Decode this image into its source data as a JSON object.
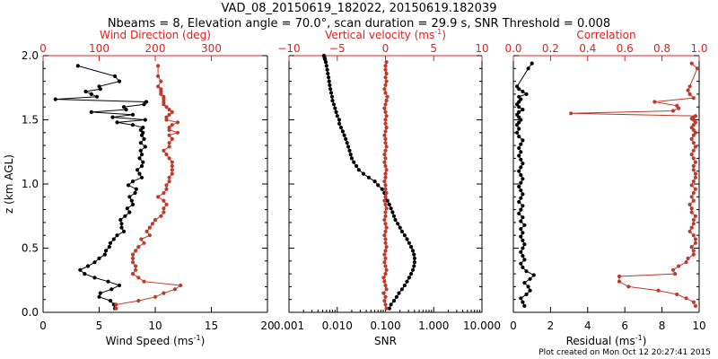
{
  "title_line1": "VAD_08_20150619_182022, 20150619.182039",
  "title_line2": "Nbeams = 8, Elevation angle = 70.0°, scan duration = 29.9 s, SNR Threshold = 0.008",
  "footer": "Plot created on Mon Oct 12 20:27:41 2015",
  "colors": {
    "black": "#000000",
    "red": "#c0392b",
    "red_axis": "#e02020"
  },
  "chart_data": [
    {
      "type": "line",
      "name": "wind-profile",
      "ylabel": "z (km AGL)",
      "ylim": [
        0,
        2.0
      ],
      "yticks": [
        0.0,
        0.5,
        1.0,
        1.5,
        2.0
      ],
      "ytick_labels": [
        "0.0",
        "0.5",
        "1.0",
        "1.5",
        "2.0"
      ],
      "bottom_axis": {
        "label": "Wind Speed (ms",
        "label_sup": "-1",
        "label_tail": ")",
        "lim": [
          0,
          20
        ],
        "ticks": [
          0,
          5,
          10,
          15,
          20
        ],
        "tick_labels": [
          "0",
          "5",
          "10",
          "15",
          "20"
        ]
      },
      "top_axis": {
        "label": "Wind Direction (deg)",
        "lim": [
          0,
          400
        ],
        "ticks": [
          0,
          100,
          200,
          300
        ],
        "tick_labels": [
          "0",
          "100",
          "200",
          "300"
        ]
      },
      "series": [
        {
          "name": "Wind Speed",
          "axis": "bottom",
          "color": "#000000",
          "x": [
            6.4,
            6.3,
            6.0,
            5.0,
            5.1,
            6.1,
            6.8,
            5.8,
            4.6,
            3.7,
            3.3,
            4.0,
            4.6,
            5.0,
            5.5,
            5.6,
            5.9,
            6.0,
            6.3,
            6.6,
            7.2,
            7.0,
            7.0,
            6.9,
            7.3,
            7.7,
            7.5,
            8.0,
            7.9,
            7.7,
            8.2,
            8.3,
            7.6,
            8.0,
            8.8,
            8.6,
            8.4,
            8.8,
            8.9,
            8.6,
            8.8,
            8.7,
            9.1,
            8.7,
            9.0,
            8.8,
            8.9,
            8.7,
            8.9,
            8.0,
            6.6,
            9.1,
            6.2,
            8.0,
            4.3,
            7.4,
            7.2,
            9.0,
            9.2,
            1.1,
            4.8,
            4.3,
            3.8,
            5.1,
            5.0,
            6.8,
            6.4,
            3.1
          ],
          "y": [
            0.03,
            0.06,
            0.09,
            0.12,
            0.15,
            0.18,
            0.21,
            0.24,
            0.27,
            0.3,
            0.33,
            0.36,
            0.39,
            0.42,
            0.45,
            0.48,
            0.51,
            0.54,
            0.57,
            0.6,
            0.63,
            0.66,
            0.69,
            0.72,
            0.75,
            0.78,
            0.81,
            0.84,
            0.87,
            0.9,
            0.93,
            0.96,
            0.99,
            1.02,
            1.05,
            1.08,
            1.11,
            1.14,
            1.17,
            1.2,
            1.23,
            1.26,
            1.29,
            1.32,
            1.35,
            1.38,
            1.4,
            1.42,
            1.44,
            1.46,
            1.48,
            1.5,
            1.52,
            1.54,
            1.56,
            1.58,
            1.6,
            1.62,
            1.64,
            1.66,
            1.68,
            1.7,
            1.72,
            1.74,
            1.76,
            1.8,
            1.84,
            1.92
          ]
        },
        {
          "name": "Wind Direction",
          "axis": "top",
          "color": "#c0392b",
          "x": [
            130,
            130,
            170,
            200,
            215,
            235,
            245,
            180,
            170,
            160,
            165,
            165,
            160,
            160,
            160,
            165,
            170,
            180,
            175,
            190,
            185,
            190,
            195,
            200,
            210,
            215,
            215,
            220,
            215,
            205,
            215,
            220,
            220,
            225,
            225,
            230,
            230,
            230,
            230,
            225,
            220,
            215,
            225,
            225,
            230,
            225,
            240,
            225,
            225,
            230,
            240,
            220,
            220,
            225,
            230,
            225,
            220,
            215,
            215,
            215,
            215,
            210,
            210,
            210,
            205,
            210,
            205,
            205
          ],
          "y": [
            0.03,
            0.06,
            0.09,
            0.12,
            0.15,
            0.18,
            0.21,
            0.24,
            0.27,
            0.3,
            0.33,
            0.36,
            0.39,
            0.42,
            0.45,
            0.48,
            0.51,
            0.54,
            0.57,
            0.6,
            0.63,
            0.66,
            0.69,
            0.72,
            0.75,
            0.78,
            0.81,
            0.84,
            0.87,
            0.9,
            0.93,
            0.96,
            0.99,
            1.02,
            1.05,
            1.08,
            1.11,
            1.14,
            1.17,
            1.2,
            1.23,
            1.26,
            1.29,
            1.32,
            1.35,
            1.38,
            1.4,
            1.42,
            1.44,
            1.46,
            1.48,
            1.5,
            1.52,
            1.54,
            1.56,
            1.58,
            1.6,
            1.62,
            1.64,
            1.66,
            1.68,
            1.7,
            1.72,
            1.74,
            1.76,
            1.8,
            1.84,
            1.92
          ]
        }
      ]
    },
    {
      "type": "line",
      "name": "snr-vertical-velocity",
      "ylim": [
        0,
        2.0
      ],
      "bottom_axis": {
        "label": "SNR",
        "scale": "log",
        "lim": [
          0.001,
          10
        ],
        "ticks": [
          0.001,
          0.01,
          0.1,
          1,
          10
        ],
        "tick_labels": [
          "0.001",
          "0.010",
          "0.100",
          "1.000",
          "10.000"
        ]
      },
      "top_axis": {
        "label": "Vertical velocity (ms",
        "label_sup": "-1",
        "label_tail": ")",
        "lim": [
          -10,
          10
        ],
        "ticks": [
          -10,
          -5,
          0,
          5,
          10
        ],
        "tick_labels": [
          "−10",
          "−5",
          "0",
          "5",
          "10"
        ]
      },
      "reference_line": {
        "axis": "top",
        "value": 0,
        "style": "dotted",
        "color": "#c0392b"
      },
      "series": [
        {
          "name": "SNR",
          "axis": "bottom",
          "color": "#000000",
          "x": [
            0.12,
            0.13,
            0.15,
            0.17,
            0.19,
            0.22,
            0.25,
            0.28,
            0.31,
            0.34,
            0.37,
            0.39,
            0.4,
            0.4,
            0.39,
            0.37,
            0.34,
            0.31,
            0.28,
            0.25,
            0.22,
            0.2,
            0.18,
            0.16,
            0.15,
            0.14,
            0.13,
            0.12,
            0.11,
            0.1,
            0.095,
            0.085,
            0.07,
            0.06,
            0.045,
            0.035,
            0.028,
            0.025,
            0.022,
            0.02,
            0.019,
            0.018,
            0.017,
            0.016,
            0.015,
            0.014,
            0.013,
            0.012,
            0.011,
            0.011,
            0.01,
            0.0095,
            0.009,
            0.0085,
            0.008,
            0.0078,
            0.0075,
            0.0072,
            0.007,
            0.0068,
            0.0066,
            0.0064,
            0.0062,
            0.006,
            0.0058,
            0.0056,
            0.0055,
            0.0054,
            0.0053
          ],
          "y": [
            0.03,
            0.06,
            0.09,
            0.12,
            0.15,
            0.18,
            0.21,
            0.24,
            0.27,
            0.3,
            0.33,
            0.36,
            0.39,
            0.42,
            0.45,
            0.48,
            0.51,
            0.54,
            0.57,
            0.6,
            0.63,
            0.66,
            0.69,
            0.72,
            0.75,
            0.78,
            0.81,
            0.84,
            0.87,
            0.9,
            0.93,
            0.96,
            0.99,
            1.02,
            1.05,
            1.08,
            1.11,
            1.14,
            1.17,
            1.2,
            1.23,
            1.26,
            1.29,
            1.32,
            1.35,
            1.38,
            1.41,
            1.44,
            1.47,
            1.5,
            1.53,
            1.56,
            1.59,
            1.62,
            1.65,
            1.68,
            1.71,
            1.74,
            1.77,
            1.8,
            1.83,
            1.86,
            1.89,
            1.92,
            1.95,
            1.97,
            1.98,
            1.99,
            2.0
          ]
        },
        {
          "name": "Vertical velocity",
          "axis": "top",
          "color": "#c0392b",
          "x": [
            0.1,
            0.0,
            -0.1,
            0.0,
            -0.2,
            0.1,
            0.0,
            -0.1,
            -0.2,
            0.0,
            0.1,
            0.0,
            -0.1,
            0.0,
            -0.1,
            0.0,
            0.1,
            0.0,
            0.0,
            -0.1,
            0.0,
            0.1,
            0.0,
            -0.1,
            0.0,
            0.0,
            0.1,
            0.0,
            -0.1,
            0.0,
            0.1,
            0.0,
            0.0,
            -0.1,
            0.0,
            0.0,
            0.1,
            0.0,
            -0.1,
            0.0,
            -0.1,
            0.0,
            0.1,
            0.0,
            0.0,
            -0.1,
            0.0,
            0.1,
            0.0,
            0.0,
            0.1,
            0.0,
            -0.1,
            0.0,
            0.1,
            0.2,
            0.0,
            -0.1,
            0.0,
            0.1,
            0.0,
            0.1,
            0.0,
            0.0,
            0.1
          ],
          "y": [
            0.03,
            0.06,
            0.09,
            0.12,
            0.15,
            0.18,
            0.21,
            0.24,
            0.27,
            0.3,
            0.33,
            0.36,
            0.39,
            0.42,
            0.45,
            0.48,
            0.51,
            0.54,
            0.57,
            0.6,
            0.63,
            0.66,
            0.69,
            0.72,
            0.75,
            0.78,
            0.81,
            0.84,
            0.87,
            0.9,
            0.93,
            0.96,
            0.99,
            1.02,
            1.05,
            1.08,
            1.11,
            1.14,
            1.17,
            1.2,
            1.23,
            1.26,
            1.29,
            1.32,
            1.35,
            1.38,
            1.41,
            1.44,
            1.47,
            1.5,
            1.53,
            1.56,
            1.59,
            1.62,
            1.65,
            1.68,
            1.71,
            1.74,
            1.77,
            1.8,
            1.83,
            1.86,
            1.89,
            1.92,
            1.95
          ]
        }
      ]
    },
    {
      "type": "line",
      "name": "residual-correlation",
      "ylim": [
        0,
        2.0
      ],
      "bottom_axis": {
        "label": "Residual (ms",
        "label_sup": "-1",
        "label_tail": ")",
        "lim": [
          0,
          10
        ],
        "ticks": [
          0,
          2,
          4,
          6,
          8,
          10
        ],
        "tick_labels": [
          "0",
          "2",
          "4",
          "6",
          "8",
          "10"
        ]
      },
      "top_axis": {
        "label": "Correlation",
        "lim": [
          0,
          1.0
        ],
        "ticks": [
          0,
          0.2,
          0.4,
          0.6,
          0.8,
          1.0
        ],
        "tick_labels": [
          "0.0",
          "0.2",
          "0.4",
          "0.6",
          "0.8",
          "1.0"
        ]
      },
      "series": [
        {
          "name": "Residual",
          "axis": "bottom",
          "color": "#000000",
          "x": [
            0.6,
            0.5,
            0.4,
            0.7,
            0.9,
            0.8,
            0.6,
            0.9,
            1.1,
            0.7,
            0.5,
            0.4,
            0.6,
            0.5,
            0.4,
            0.5,
            0.6,
            0.5,
            0.4,
            0.5,
            0.4,
            0.6,
            0.4,
            0.5,
            0.3,
            0.4,
            0.5,
            0.3,
            0.4,
            0.5,
            0.4,
            0.3,
            0.4,
            0.5,
            0.4,
            0.3,
            0.4,
            0.5,
            0.4,
            0.3,
            0.4,
            0.3,
            0.4,
            0.5,
            0.3,
            0.2,
            0.3,
            0.2,
            0.3,
            0.4,
            0.3,
            0.2,
            0.3,
            0.5,
            0.3,
            0.2,
            0.3,
            0.4,
            0.3,
            0.7,
            0.5,
            0.3,
            0.2,
            0.8,
            1.0
          ],
          "y": [
            0.05,
            0.08,
            0.11,
            0.14,
            0.17,
            0.2,
            0.23,
            0.26,
            0.29,
            0.32,
            0.35,
            0.38,
            0.41,
            0.44,
            0.47,
            0.5,
            0.53,
            0.56,
            0.59,
            0.62,
            0.65,
            0.68,
            0.71,
            0.74,
            0.77,
            0.8,
            0.83,
            0.86,
            0.89,
            0.92,
            0.95,
            0.98,
            1.01,
            1.04,
            1.07,
            1.1,
            1.13,
            1.16,
            1.19,
            1.22,
            1.25,
            1.28,
            1.31,
            1.34,
            1.37,
            1.4,
            1.43,
            1.46,
            1.48,
            1.5,
            1.52,
            1.54,
            1.56,
            1.58,
            1.6,
            1.62,
            1.64,
            1.66,
            1.68,
            1.7,
            1.72,
            1.74,
            1.76,
            1.9,
            1.94
          ]
        },
        {
          "name": "Correlation",
          "axis": "top",
          "color": "#c0392b",
          "x": [
            0.98,
            0.97,
            0.93,
            0.88,
            0.78,
            0.62,
            0.57,
            0.57,
            0.87,
            0.86,
            0.89,
            0.93,
            0.94,
            0.97,
            0.97,
            0.96,
            0.98,
            0.98,
            0.97,
            0.95,
            0.96,
            0.97,
            0.97,
            0.98,
            0.96,
            0.96,
            0.95,
            0.97,
            0.96,
            0.97,
            0.98,
            0.96,
            0.97,
            0.98,
            0.98,
            0.97,
            0.97,
            0.98,
            0.97,
            0.96,
            0.97,
            0.98,
            0.97,
            0.96,
            0.97,
            0.98,
            0.97,
            0.96,
            0.97,
            0.98,
            0.97,
            0.96,
            0.97,
            0.98,
            0.31,
            0.86,
            0.89,
            0.88,
            0.76,
            0.97,
            0.95,
            0.94,
            0.95,
            0.99,
            0.96
          ],
          "y": [
            0.05,
            0.08,
            0.11,
            0.14,
            0.17,
            0.2,
            0.24,
            0.28,
            0.3,
            0.33,
            0.36,
            0.39,
            0.42,
            0.45,
            0.48,
            0.51,
            0.54,
            0.57,
            0.6,
            0.63,
            0.66,
            0.69,
            0.72,
            0.75,
            0.78,
            0.81,
            0.84,
            0.87,
            0.9,
            0.93,
            0.96,
            0.99,
            1.02,
            1.05,
            1.08,
            1.11,
            1.14,
            1.17,
            1.2,
            1.23,
            1.26,
            1.29,
            1.32,
            1.35,
            1.38,
            1.4,
            1.42,
            1.44,
            1.46,
            1.48,
            1.5,
            1.51,
            1.52,
            1.53,
            1.55,
            1.57,
            1.59,
            1.61,
            1.64,
            1.67,
            1.7,
            1.73,
            1.76,
            1.9,
            1.94
          ]
        }
      ]
    }
  ]
}
